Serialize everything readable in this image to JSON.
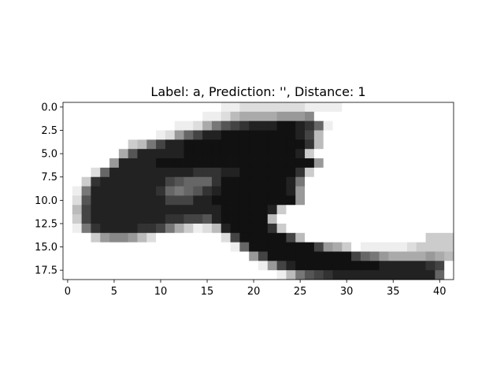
{
  "chart_data": {
    "type": "heatmap",
    "title": "Label: a, Prediction: '', Distance: 1",
    "colormap": "gray",
    "xlabel": "",
    "ylabel": "",
    "xlim": [
      -0.5,
      41.5
    ],
    "ylim": [
      18.5,
      -0.5
    ],
    "x_ticks": [
      {
        "value": 0,
        "label": "0"
      },
      {
        "value": 5,
        "label": "5"
      },
      {
        "value": 10,
        "label": "10"
      },
      {
        "value": 15,
        "label": "15"
      },
      {
        "value": 20,
        "label": "20"
      },
      {
        "value": 25,
        "label": "25"
      },
      {
        "value": 30,
        "label": "30"
      },
      {
        "value": 35,
        "label": "35"
      },
      {
        "value": 40,
        "label": "40"
      }
    ],
    "y_ticks": [
      {
        "value": 0.0,
        "label": "0.0"
      },
      {
        "value": 2.5,
        "label": "2.5"
      },
      {
        "value": 5.0,
        "label": "5.0"
      },
      {
        "value": 7.5,
        "label": "7.5"
      },
      {
        "value": 10.0,
        "label": "10.0"
      },
      {
        "value": 12.5,
        "label": "12.5"
      },
      {
        "value": 15.0,
        "label": "15.0"
      },
      {
        "value": 17.5,
        "label": "17.5"
      }
    ],
    "grid": false,
    "pixels": [
      "fffffffffffffffffeedddddddeeeeffffffffffff",
      "fffffffffffffffeedbaaaa9998fffffffffffffff",
      "ffffffffffffeeda754322211236efffffffffffff",
      "ffffffffffed964221111111124bffffffffffffff",
      "fffffffcb742211111111111113bffffffffffffff",
      "ffffffa5222221111111111112cfffffffffffffff",
      "fffff92222111111111111111119ffffffffffffff",
      "fffd6222222222333221111113cfffffffffffffff",
      "ffc32222222456663111111127ffffffffffffffff",
      "fe722222223676532111111129ffffffffffffffff",
      "fd522222222444221111111119ffffffffffffffff",
      "fb422222222222222111112cffffffffffffffffff",
      "fc42222222233445211111bfffffffffffffffffff",
      "fe7322223347acedb211113cffffffffffffffffff",
      "fffc9889bdfffffffd4111114bfffffffffffffccc",
      "ffffffffffffffffffe6111111149acfeeeeedcccc",
      "ffffffffffffffffffff941111111114679aaaa9ab",
      "fffffffffffffffffffffe9421111111112222234f",
      "fffffffffffffffffffffffeb7543222222222226f"
    ]
  }
}
